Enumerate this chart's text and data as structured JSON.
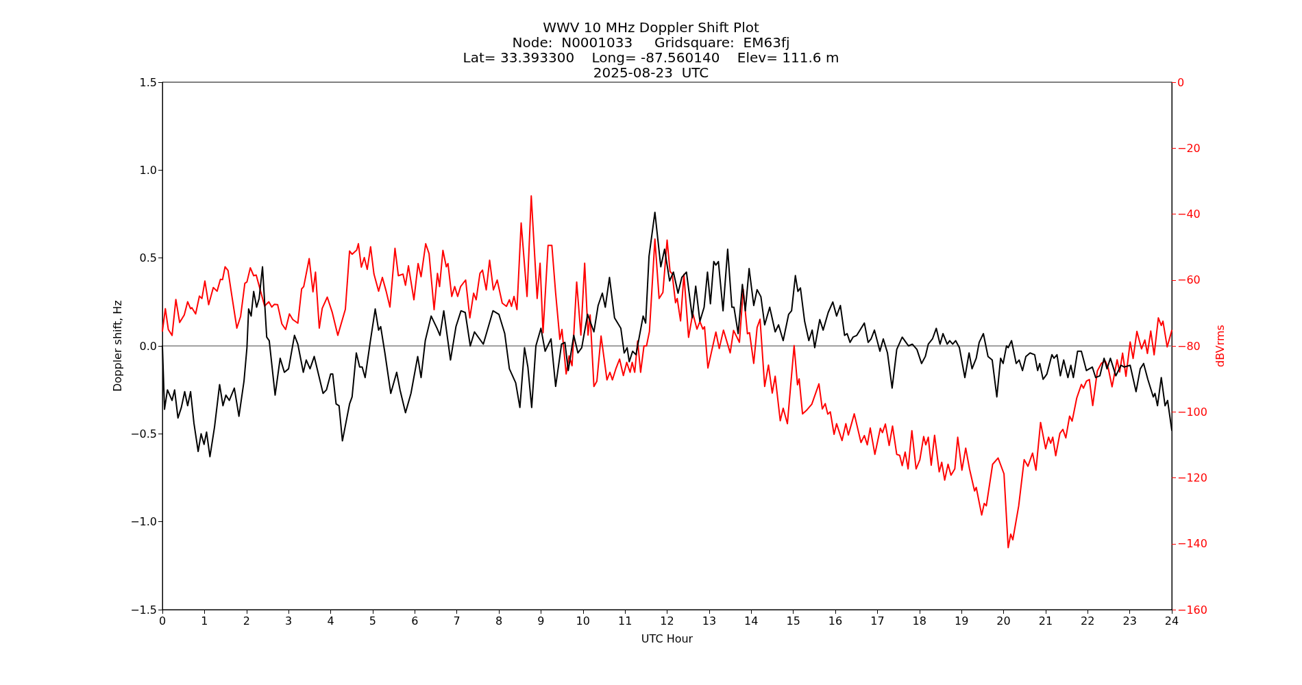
{
  "chart_data": {
    "type": "line",
    "title": "WWV 10 MHz Doppler Shift Plot",
    "subtitle": "Node:  N0001033     Gridsquare:  EM63fj\nLat= 33.393300    Long= -87.560140    Elev= 111.6 m\n2025-08-23  UTC",
    "xlabel": "UTC Hour",
    "ylabel": "Doppler shift, Hz",
    "y2label": "dBVrms",
    "xlim": [
      0,
      24
    ],
    "xticks": [
      0,
      1,
      2,
      3,
      4,
      5,
      6,
      7,
      8,
      9,
      10,
      11,
      12,
      13,
      14,
      15,
      16,
      17,
      18,
      19,
      20,
      21,
      22,
      23,
      24
    ],
    "ylim": [
      -1.5,
      1.5
    ],
    "yticks": [
      {
        "value": -1.5,
        "label": "−1.5"
      },
      {
        "value": -1,
        "label": "−1.0"
      },
      {
        "value": -0.5,
        "label": "−0.5"
      },
      {
        "value": 0,
        "label": "0.0"
      },
      {
        "value": 0.5,
        "label": "0.5"
      },
      {
        "value": 1,
        "label": "1.0"
      },
      {
        "value": 1.5,
        "label": "1.5"
      }
    ],
    "y2lim": [
      -160,
      0
    ],
    "y2ticks": [
      {
        "value": -160,
        "label": "−160"
      },
      {
        "value": -140,
        "label": "−140"
      },
      {
        "value": -120,
        "label": "−120"
      },
      {
        "value": -100,
        "label": "−100"
      },
      {
        "value": -80,
        "label": "−80"
      },
      {
        "value": -60,
        "label": "−60"
      },
      {
        "value": -40,
        "label": "−40"
      },
      {
        "value": -20,
        "label": "−20"
      },
      0
    ],
    "grid": false,
    "marker": "none",
    "line_style": "solid",
    "ref_lines": [
      {
        "axis": "y",
        "value": 0,
        "color": "#808080"
      }
    ],
    "series": [
      {
        "color": "#000000",
        "x": [
          0,
          0.05,
          0.12,
          0.23,
          0.29,
          0.37,
          0.45,
          0.53,
          0.6,
          0.67,
          0.75,
          0.85,
          0.92,
          0.99,
          1.05,
          1.13,
          1.24,
          1.36,
          1.44,
          1.51,
          1.59,
          1.71,
          1.82,
          1.94,
          2.01,
          2.05,
          2.11,
          2.17,
          2.24,
          2.3,
          2.38,
          2.48,
          2.54,
          2.68,
          2.8,
          2.9,
          3,
          3.14,
          3.22,
          3.35,
          3.42,
          3.51,
          3.61,
          3.82,
          3.9,
          4,
          4.05,
          4.13,
          4.2,
          4.28,
          4.45,
          4.51,
          4.61,
          4.69,
          4.75,
          4.82,
          4.94,
          5.06,
          5.14,
          5.19,
          5.29,
          5.43,
          5.57,
          5.65,
          5.78,
          5.91,
          6.07,
          6.15,
          6.25,
          6.39,
          6.53,
          6.6,
          6.69,
          6.85,
          6.98,
          7.1,
          7.2,
          7.32,
          7.42,
          7.63,
          7.86,
          8,
          8.14,
          8.25,
          8.4,
          8.5,
          8.61,
          8.69,
          8.78,
          8.88,
          9,
          9.1,
          9.24,
          9.35,
          9.49,
          9.57,
          9.65,
          9.78,
          9.88,
          9.97,
          10.11,
          10.26,
          10.36,
          10.46,
          10.53,
          10.63,
          10.75,
          10.9,
          10.98,
          11.05,
          11.1,
          11.18,
          11.26,
          11.43,
          11.49,
          11.57,
          11.71,
          11.85,
          11.94,
          12.06,
          12.15,
          12.26,
          12.35,
          12.46,
          12.6,
          12.68,
          12.78,
          12.88,
          12.96,
          13.03,
          13.11,
          13.16,
          13.22,
          13.33,
          13.44,
          13.54,
          13.59,
          13.69,
          13.79,
          13.86,
          13.95,
          14.06,
          14.14,
          14.23,
          14.32,
          14.44,
          14.57,
          14.65,
          14.76,
          14.89,
          14.96,
          15.05,
          15.11,
          15.17,
          15.27,
          15.37,
          15.45,
          15.51,
          15.63,
          15.71,
          15.83,
          15.94,
          16.03,
          16.12,
          16.22,
          16.28,
          16.35,
          16.42,
          16.51,
          16.69,
          16.78,
          16.85,
          16.93,
          17.06,
          17.14,
          17.24,
          17.35,
          17.46,
          17.59,
          17.68,
          17.74,
          17.83,
          17.94,
          18.05,
          18.14,
          18.21,
          18.31,
          18.4,
          18.49,
          18.56,
          18.66,
          18.72,
          18.79,
          18.86,
          18.95,
          19.08,
          19.18,
          19.25,
          19.35,
          19.42,
          19.52,
          19.63,
          19.73,
          19.84,
          19.93,
          19.99,
          20.07,
          20.11,
          20.19,
          20.3,
          20.37,
          20.45,
          20.53,
          20.63,
          20.74,
          20.81,
          20.86,
          20.94,
          21.03,
          21.15,
          21.2,
          21.27,
          21.35,
          21.43,
          21.53,
          21.6,
          21.66,
          21.76,
          21.85,
          21.97,
          22.11,
          22.19,
          22.29,
          22.39,
          22.46,
          22.54,
          22.67,
          22.79,
          22.87,
          23.01,
          23.15,
          23.25,
          23.33,
          23.43,
          23.56,
          23.6,
          23.66,
          23.75,
          23.84,
          23.9,
          24
        ],
        "values": [
          0,
          -0.36,
          -0.25,
          -0.31,
          -0.25,
          -0.41,
          -0.35,
          -0.26,
          -0.34,
          -0.26,
          -0.44,
          -0.6,
          -0.5,
          -0.56,
          -0.49,
          -0.63,
          -0.46,
          -0.22,
          -0.34,
          -0.28,
          -0.31,
          -0.24,
          -0.4,
          -0.2,
          -0.01,
          0.21,
          0.17,
          0.31,
          0.22,
          0.27,
          0.45,
          0.05,
          0.03,
          -0.28,
          -0.07,
          -0.15,
          -0.13,
          0.06,
          0.01,
          -0.15,
          -0.08,
          -0.13,
          -0.06,
          -0.27,
          -0.25,
          -0.16,
          -0.16,
          -0.33,
          -0.34,
          -0.54,
          -0.33,
          -0.29,
          -0.04,
          -0.12,
          -0.12,
          -0.18,
          0.02,
          0.21,
          0.09,
          0.11,
          -0.04,
          -0.27,
          -0.15,
          -0.25,
          -0.38,
          -0.27,
          -0.06,
          -0.18,
          0.03,
          0.17,
          0.1,
          0.06,
          0.2,
          -0.08,
          0.11,
          0.2,
          0.19,
          0,
          0.08,
          0.01,
          0.2,
          0.18,
          0.07,
          -0.13,
          -0.21,
          -0.35,
          -0.01,
          -0.12,
          -0.35,
          0,
          0.1,
          -0.03,
          0.04,
          -0.23,
          0.01,
          0.02,
          -0.14,
          0.06,
          -0.04,
          -0.01,
          0.18,
          0.08,
          0.23,
          0.3,
          0.22,
          0.39,
          0.16,
          0.1,
          -0.04,
          -0.01,
          -0.09,
          -0.03,
          -0.05,
          0.17,
          0.13,
          0.51,
          0.76,
          0.45,
          0.55,
          0.37,
          0.42,
          0.3,
          0.39,
          0.42,
          0.16,
          0.34,
          0.14,
          0.22,
          0.42,
          0.24,
          0.48,
          0.46,
          0.48,
          0.2,
          0.55,
          0.22,
          0.22,
          0.07,
          0.35,
          0.2,
          0.44,
          0.23,
          0.32,
          0.28,
          0.12,
          0.22,
          0.08,
          0.12,
          0.03,
          0.18,
          0.2,
          0.4,
          0.31,
          0.33,
          0.14,
          0.03,
          0.09,
          -0.01,
          0.15,
          0.09,
          0.19,
          0.25,
          0.17,
          0.23,
          0.06,
          0.07,
          0.02,
          0.05,
          0.06,
          0.13,
          0.02,
          0.04,
          0.09,
          -0.03,
          0.04,
          -0.04,
          -0.24,
          -0.02,
          0.05,
          0.02,
          0,
          0.01,
          -0.02,
          -0.1,
          -0.06,
          0.01,
          0.04,
          0.1,
          0.01,
          0.07,
          0.01,
          0.03,
          0.01,
          0.03,
          -0.01,
          -0.18,
          -0.04,
          -0.13,
          -0.07,
          0.02,
          0.07,
          -0.06,
          -0.08,
          -0.29,
          -0.07,
          -0.1,
          0,
          -0.01,
          0.03,
          -0.1,
          -0.08,
          -0.14,
          -0.06,
          -0.04,
          -0.05,
          -0.14,
          -0.1,
          -0.19,
          -0.16,
          -0.05,
          -0.07,
          -0.05,
          -0.17,
          -0.08,
          -0.18,
          -0.11,
          -0.18,
          -0.03,
          -0.03,
          -0.14,
          -0.12,
          -0.18,
          -0.17,
          -0.07,
          -0.13,
          -0.07,
          -0.17,
          -0.11,
          -0.12,
          -0.11,
          -0.26,
          -0.13,
          -0.1,
          -0.19,
          -0.29,
          -0.27,
          -0.34,
          -0.18,
          -0.34,
          -0.31,
          -0.48
        ]
      },
      {
        "color": "#ff0000",
        "axis": "y2",
        "x": [
          0,
          0.07,
          0.14,
          0.23,
          0.32,
          0.41,
          0.52,
          0.6,
          0.67,
          0.7,
          0.79,
          0.88,
          0.94,
          1.01,
          1.1,
          1.21,
          1.3,
          1.38,
          1.43,
          1.49,
          1.56,
          1.65,
          1.77,
          1.86,
          1.96,
          2.01,
          2.09,
          2.17,
          2.23,
          2.43,
          2.53,
          2.6,
          2.66,
          2.74,
          2.84,
          2.93,
          3.02,
          3.1,
          3.22,
          3.31,
          3.36,
          3.49,
          3.58,
          3.64,
          3.73,
          3.8,
          3.92,
          4.04,
          4.17,
          4.35,
          4.45,
          4.51,
          4.62,
          4.66,
          4.73,
          4.8,
          4.87,
          4.95,
          5.03,
          5.14,
          5.23,
          5.32,
          5.41,
          5.53,
          5.61,
          5.72,
          5.78,
          5.85,
          5.98,
          6.08,
          6.15,
          6.26,
          6.34,
          6.46,
          6.54,
          6.59,
          6.67,
          6.75,
          6.79,
          6.88,
          6.95,
          7.02,
          7.09,
          7.21,
          7.31,
          7.4,
          7.46,
          7.55,
          7.61,
          7.7,
          7.78,
          7.87,
          7.96,
          8.08,
          8.18,
          8.25,
          8.3,
          8.36,
          8.43,
          8.53,
          8.67,
          8.77,
          8.91,
          8.98,
          9.05,
          9.17,
          9.26,
          9.35,
          9.45,
          9.5,
          9.6,
          9.67,
          9.74,
          9.85,
          9.95,
          10.04,
          10.12,
          10.17,
          10.26,
          10.33,
          10.43,
          10.57,
          10.64,
          10.7,
          10.78,
          10.87,
          10.96,
          11.04,
          11.12,
          11.17,
          11.23,
          11.3,
          11.37,
          11.45,
          11.51,
          11.58,
          11.71,
          11.81,
          11.9,
          12,
          12.07,
          12.12,
          12.2,
          12.24,
          12.32,
          12.4,
          12.51,
          12.61,
          12.71,
          12.78,
          12.85,
          12.89,
          12.97,
          13.05,
          13.16,
          13.24,
          13.34,
          13.5,
          13.58,
          13.72,
          13.81,
          13.91,
          13.96,
          14.06,
          14.14,
          14.21,
          14.32,
          14.41,
          14.5,
          14.57,
          14.69,
          14.76,
          14.86,
          15.02,
          15.1,
          15.14,
          15.22,
          15.31,
          15.44,
          15.61,
          15.69,
          15.76,
          15.82,
          15.88,
          15.97,
          16.03,
          16.16,
          16.25,
          16.31,
          16.45,
          16.61,
          16.69,
          16.76,
          16.83,
          16.94,
          17.07,
          17.12,
          17.19,
          17.28,
          17.36,
          17.46,
          17.53,
          17.59,
          17.66,
          17.73,
          17.82,
          17.92,
          18.01,
          18.1,
          18.15,
          18.21,
          18.28,
          18.36,
          18.47,
          18.53,
          18.6,
          18.68,
          18.75,
          18.84,
          18.91,
          19.01,
          19.1,
          19.19,
          19.31,
          19.35,
          19.48,
          19.54,
          19.59,
          19.74,
          19.87,
          20.01,
          20.11,
          20.17,
          20.22,
          20.36,
          20.49,
          20.58,
          20.69,
          20.77,
          20.88,
          21,
          21.07,
          21.12,
          21.17,
          21.24,
          21.34,
          21.41,
          21.48,
          21.57,
          21.63,
          21.74,
          21.85,
          21.9,
          21.97,
          22.04,
          22.12,
          22.23,
          22.33,
          22.42,
          22.49,
          22.58,
          22.7,
          22.76,
          22.83,
          22.91,
          23.01,
          23.08,
          23.17,
          23.28,
          23.36,
          23.42,
          23.5,
          23.58,
          23.68,
          23.75,
          23.79,
          23.89,
          24
        ],
        "values": [
          -75.5,
          -68.7,
          -75,
          -76.8,
          -65.9,
          -72.9,
          -70.6,
          -66.6,
          -68.7,
          -68.4,
          -70.3,
          -64.9,
          -65.6,
          -60.3,
          -67.5,
          -62.3,
          -63.4,
          -59.8,
          -59.9,
          -56,
          -57.1,
          -64.7,
          -74.6,
          -71,
          -61,
          -60.6,
          -56.3,
          -58.7,
          -58.5,
          -67.9,
          -66.6,
          -68.2,
          -67.4,
          -67.5,
          -73.3,
          -75,
          -70.3,
          -72,
          -73.1,
          -62.7,
          -62,
          -53.5,
          -63.6,
          -57.6,
          -74.6,
          -68.6,
          -65.2,
          -69.9,
          -76.8,
          -68.9,
          -51.2,
          -52.2,
          -50.9,
          -49,
          -56.1,
          -53.2,
          -56.8,
          -49.9,
          -58.2,
          -63.4,
          -59.2,
          -63.4,
          -68.2,
          -50.4,
          -58.7,
          -58.2,
          -61.6,
          -55.7,
          -66,
          -55,
          -59,
          -49,
          -52,
          -69,
          -58,
          -62,
          -51,
          -56,
          -55,
          -65,
          -62,
          -65,
          -62,
          -60,
          -71.5,
          -64,
          -66,
          -58,
          -57,
          -63,
          -54,
          -63,
          -60,
          -67,
          -68,
          -66,
          -68,
          -65,
          -69,
          -42.7,
          -65,
          -34.5,
          -65.6,
          -54.9,
          -76,
          -49.5,
          -49.5,
          -64,
          -78,
          -75,
          -88.5,
          -83,
          -86,
          -60.6,
          -76.7,
          -54.9,
          -76.7,
          -70.6,
          -92.3,
          -90.7,
          -77,
          -90.3,
          -88,
          -90.3,
          -87,
          -84,
          -89,
          -85,
          -88,
          -85,
          -88,
          -78.5,
          -88,
          -80,
          -80,
          -75.6,
          -47.6,
          -65.6,
          -63.8,
          -47.9,
          -57.4,
          -58.1,
          -66.9,
          -65.6,
          -72.4,
          -58.3,
          -77.4,
          -70.1,
          -74.9,
          -72.6,
          -74.9,
          -74.2,
          -86.7,
          -82.1,
          -75.8,
          -80.8,
          -75.2,
          -82.1,
          -75.3,
          -78.9,
          -62.8,
          -76.3,
          -76,
          -85.3,
          -74.4,
          -71.9,
          -92.3,
          -85.8,
          -94.3,
          -89.2,
          -102.7,
          -98.9,
          -103.6,
          -79.9,
          -91.8,
          -90,
          -100.6,
          -99.6,
          -97.7,
          -91.5,
          -99.1,
          -97.5,
          -100.7,
          -100,
          -106.8,
          -103.6,
          -108.7,
          -103.6,
          -107,
          -100.6,
          -109.3,
          -107.2,
          -110,
          -104.9,
          -112.9,
          -105,
          -106.3,
          -103.7,
          -110.2,
          -104.3,
          -112.9,
          -113.2,
          -116.3,
          -112.2,
          -117.3,
          -105.7,
          -117.3,
          -114.5,
          -107.5,
          -110,
          -107.7,
          -116.2,
          -107.1,
          -118.2,
          -115.3,
          -120.7,
          -115.9,
          -119.2,
          -117.3,
          -107.7,
          -117.7,
          -111,
          -117.3,
          -124,
          -122.9,
          -131.3,
          -127.8,
          -128.5,
          -115.9,
          -114,
          -118.8,
          -141.2,
          -137.1,
          -138.8,
          -128.5,
          -114.5,
          -116.5,
          -112.5,
          -117.7,
          -103.2,
          -111.2,
          -107.7,
          -109.5,
          -107.7,
          -113.3,
          -106.5,
          -105.3,
          -107.9,
          -101.3,
          -102.8,
          -95.8,
          -91.7,
          -92.8,
          -90.7,
          -90.2,
          -98.1,
          -87.6,
          -85.2,
          -84.6,
          -86.8,
          -92.4,
          -84.2,
          -87.9,
          -82.2,
          -89.2,
          -78.8,
          -83.8,
          -75.6,
          -80.9,
          -78.2,
          -82.3,
          -75.5,
          -82.7,
          -71.5,
          -73.8,
          -72.5,
          -80.3,
          -75.3
        ]
      }
    ]
  }
}
